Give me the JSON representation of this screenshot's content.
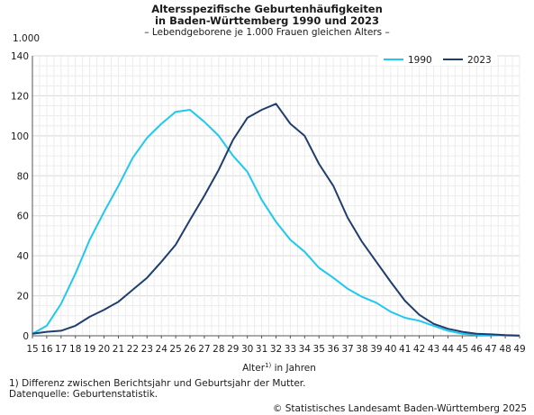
{
  "chart_data": {
    "type": "line",
    "title_line1": "Altersspezifische Geburtenhäufigkeiten",
    "title_line2": "in Baden-Württemberg 1990 und 2023",
    "subtitle": "– Lebendgeborene je 1.000 Frauen gleichen Alters –",
    "y_unit": "1.000",
    "xlabel_prefix": "Alter",
    "xlabel_sup": "1)",
    "xlabel_suffix": " in Jahren",
    "x": [
      15,
      16,
      17,
      18,
      19,
      20,
      21,
      22,
      23,
      24,
      25,
      26,
      27,
      28,
      29,
      30,
      31,
      32,
      33,
      34,
      35,
      36,
      37,
      38,
      39,
      40,
      41,
      42,
      43,
      44,
      45,
      46,
      47,
      48,
      49
    ],
    "ylim": [
      0,
      140
    ],
    "yticks": [
      0,
      20,
      40,
      60,
      80,
      100,
      120,
      140
    ],
    "grid": true,
    "legend_position": "top-right",
    "series": [
      {
        "name": "1990",
        "color": "#1ec8f0",
        "values": [
          1,
          5,
          16,
          31,
          48,
          62,
          75,
          89,
          99,
          106,
          112,
          113,
          107,
          100,
          90,
          82,
          68,
          57,
          48,
          42,
          34,
          29,
          23.5,
          19.5,
          16.5,
          12,
          9,
          7.5,
          5,
          2.5,
          1,
          0.5,
          0.3,
          0.1,
          0
        ]
      },
      {
        "name": "2023",
        "color": "#1f3e6e",
        "values": [
          1,
          2,
          2.5,
          5,
          9.5,
          13,
          17,
          23,
          29,
          37,
          45.5,
          58,
          70,
          83,
          98,
          109,
          113,
          116,
          106,
          100,
          86,
          75,
          59,
          47,
          37,
          27,
          17.5,
          10.5,
          6,
          3.5,
          2,
          1,
          0.7,
          0.3,
          0.1
        ]
      }
    ]
  },
  "footnotes": {
    "line1": "1) Differenz zwischen Berichtsjahr und  Geburtsjahr der Mutter.",
    "line2": "Datenquelle: Geburtenstatistik.",
    "copyright": "© Statistisches Landesamt Baden-Württemberg 2025"
  }
}
